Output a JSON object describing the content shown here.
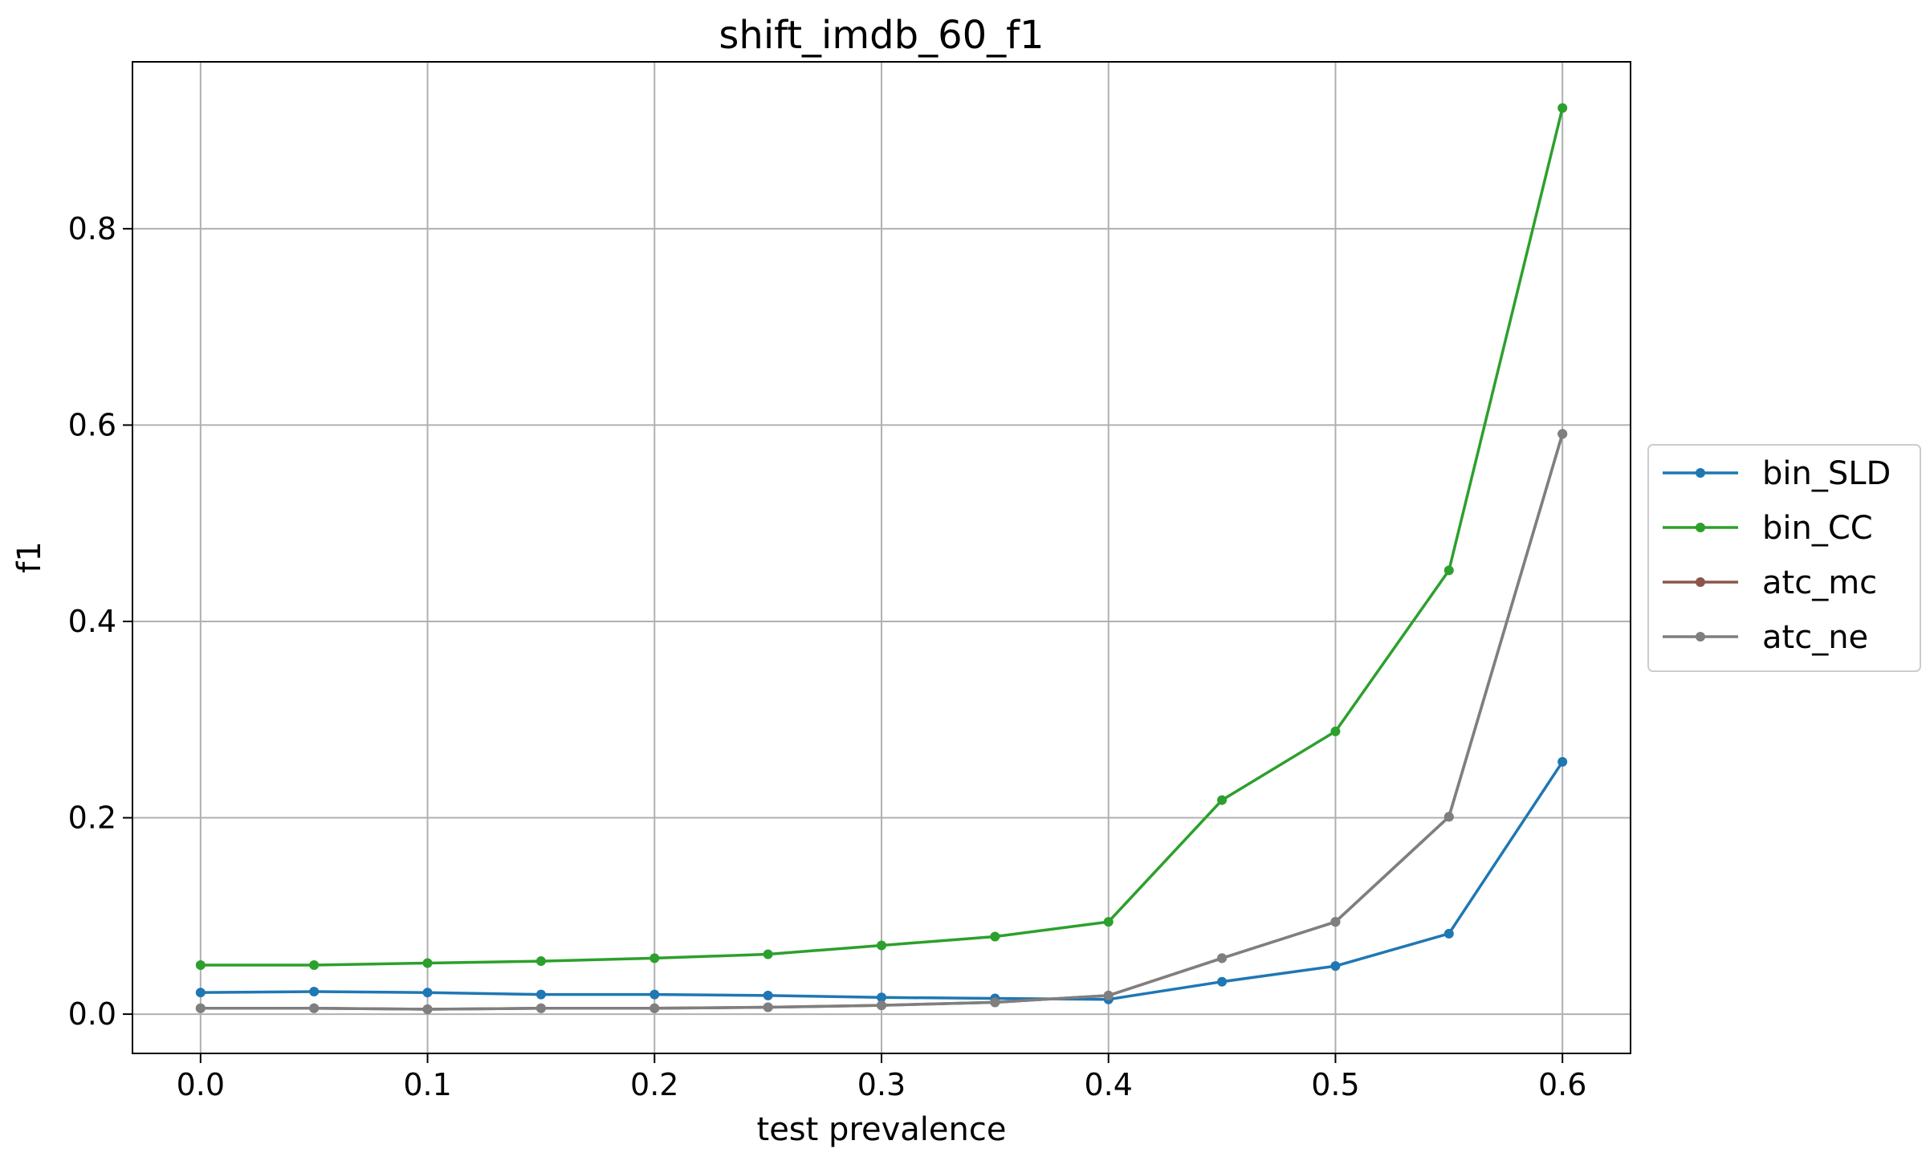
{
  "chart_data": {
    "type": "line",
    "title": "shift_imdb_60_f1",
    "xlabel": "test prevalence",
    "ylabel": "f1",
    "xlim": [
      -0.03,
      0.63
    ],
    "ylim": [
      -0.04,
      0.97
    ],
    "xticks": [
      0.0,
      0.1,
      0.2,
      0.3,
      0.4,
      0.5,
      0.6
    ],
    "xtick_labels": [
      "0.0",
      "0.1",
      "0.2",
      "0.3",
      "0.4",
      "0.5",
      "0.6"
    ],
    "yticks": [
      0.0,
      0.2,
      0.4,
      0.6,
      0.8
    ],
    "ytick_labels": [
      "0.0",
      "0.2",
      "0.4",
      "0.6",
      "0.8"
    ],
    "grid": true,
    "legend_position": "right-outside",
    "x": [
      0.0,
      0.05,
      0.1,
      0.15,
      0.2,
      0.25,
      0.3,
      0.35,
      0.4,
      0.45,
      0.5,
      0.55,
      0.6
    ],
    "series": [
      {
        "name": "bin_SLD",
        "color": "#1f77b4",
        "values": [
          0.022,
          0.023,
          0.022,
          0.02,
          0.02,
          0.019,
          0.017,
          0.016,
          0.015,
          0.033,
          0.049,
          0.082,
          0.257
        ]
      },
      {
        "name": "bin_CC",
        "color": "#2ca02c",
        "values": [
          0.05,
          0.05,
          0.052,
          0.054,
          0.057,
          0.061,
          0.07,
          0.079,
          0.094,
          0.218,
          0.288,
          0.452,
          0.923
        ]
      },
      {
        "name": "atc_mc",
        "color": "#8c564b",
        "values": [
          0.006,
          0.006,
          0.005,
          0.006,
          0.006,
          0.007,
          0.009,
          0.012,
          0.019,
          0.057,
          0.094,
          0.201,
          0.591
        ]
      },
      {
        "name": "atc_ne",
        "color": "#7f7f7f",
        "values": [
          0.006,
          0.006,
          0.005,
          0.006,
          0.006,
          0.007,
          0.009,
          0.012,
          0.019,
          0.057,
          0.094,
          0.201,
          0.591
        ]
      }
    ]
  }
}
